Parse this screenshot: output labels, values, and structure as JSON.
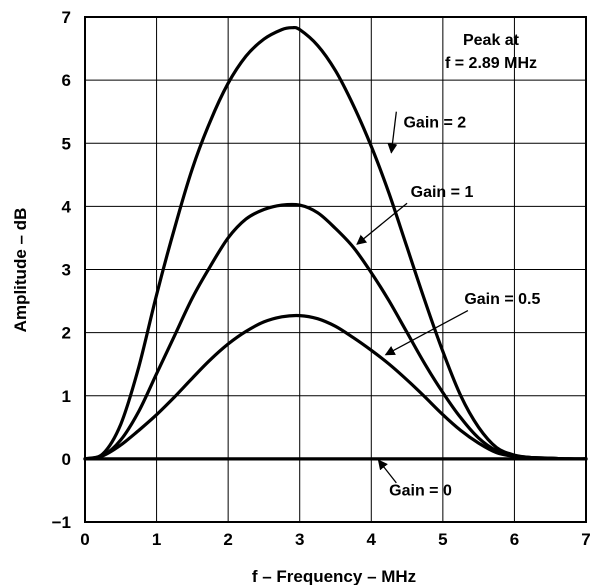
{
  "chart_data": {
    "type": "line",
    "xlabel": "f – Frequency – MHz",
    "ylabel": "Amplitude – dB",
    "xlim": [
      0,
      7
    ],
    "ylim": [
      -1,
      7
    ],
    "x_ticks": [
      "0",
      "1",
      "2",
      "3",
      "4",
      "5",
      "6",
      "7"
    ],
    "y_ticks": [
      "−1",
      "0",
      "1",
      "2",
      "3",
      "4",
      "5",
      "6",
      "7"
    ],
    "grid": true,
    "annotation": {
      "line1": "Peak at",
      "line2": "f = 2.89 MHz"
    },
    "series": [
      {
        "name": "Gain = 2",
        "x": [
          0,
          0.25,
          0.5,
          0.75,
          1,
          1.25,
          1.5,
          1.75,
          2,
          2.25,
          2.5,
          2.75,
          2.89,
          3,
          3.25,
          3.5,
          3.75,
          4,
          4.25,
          4.5,
          4.75,
          5,
          5.25,
          5.5,
          5.75,
          6,
          6.25,
          6.5,
          6.75,
          7
        ],
        "y": [
          0,
          0.08,
          0.55,
          1.45,
          2.6,
          3.65,
          4.6,
          5.35,
          5.95,
          6.38,
          6.65,
          6.8,
          6.83,
          6.8,
          6.55,
          6.15,
          5.6,
          4.95,
          4.2,
          3.35,
          2.5,
          1.7,
          1.0,
          0.5,
          0.18,
          0.06,
          0.02,
          0.01,
          0.0,
          0.0
        ],
        "label": "Gain = 2"
      },
      {
        "name": "Gain = 1",
        "x": [
          0,
          0.25,
          0.5,
          0.75,
          1,
          1.25,
          1.5,
          1.75,
          2,
          2.25,
          2.5,
          2.75,
          3,
          3.25,
          3.5,
          3.75,
          4,
          4.25,
          4.5,
          4.75,
          5,
          5.25,
          5.5,
          5.75,
          6,
          6.25,
          6.5,
          6.75,
          7
        ],
        "y": [
          0,
          0.05,
          0.3,
          0.75,
          1.35,
          1.95,
          2.55,
          3.05,
          3.5,
          3.8,
          3.95,
          4.02,
          4.02,
          3.9,
          3.65,
          3.35,
          2.95,
          2.5,
          2.0,
          1.5,
          1.05,
          0.65,
          0.33,
          0.13,
          0.05,
          0.02,
          0.01,
          0.0,
          0.0
        ],
        "label": "Gain = 1"
      },
      {
        "name": "Gain = 0.5",
        "x": [
          0,
          0.25,
          0.5,
          0.75,
          1,
          1.25,
          1.5,
          1.75,
          2,
          2.25,
          2.5,
          2.75,
          3,
          3.25,
          3.5,
          3.75,
          4,
          4.25,
          4.5,
          4.75,
          5,
          5.25,
          5.5,
          5.75,
          6,
          6.25,
          6.5,
          6.75,
          7
        ],
        "y": [
          0,
          0.05,
          0.22,
          0.45,
          0.7,
          0.98,
          1.28,
          1.57,
          1.82,
          2.02,
          2.17,
          2.25,
          2.27,
          2.22,
          2.1,
          1.92,
          1.72,
          1.5,
          1.25,
          0.98,
          0.7,
          0.45,
          0.25,
          0.1,
          0.04,
          0.02,
          0.01,
          0.0,
          0.0
        ],
        "label": "Gain = 0.5"
      },
      {
        "name": "Gain = 0",
        "x": [
          0,
          7
        ],
        "y": [
          0,
          0
        ],
        "label": "Gain = 0"
      }
    ],
    "labels": {
      "Gain = 2": {
        "text": "Gain = 2",
        "tx": 4.45,
        "ty": 5.25,
        "ax": 4.35,
        "ay": 5.5,
        "tipx": 4.28,
        "tipy": 4.85
      },
      "Gain = 1": {
        "text": "Gain = 1",
        "tx": 4.55,
        "ty": 4.15,
        "ax": 4.5,
        "ay": 4.05,
        "tipx": 3.8,
        "tipy": 3.4
      },
      "Gain = 0.5": {
        "text": "Gain = 0.5",
        "tx": 5.3,
        "ty": 2.45,
        "ax": 5.35,
        "ay": 2.35,
        "tipx": 4.2,
        "tipy": 1.65
      },
      "Gain = 0": {
        "text": "Gain = 0",
        "tx": 4.25,
        "ty": -0.58,
        "ax": 4.35,
        "ay": -0.38,
        "tipx": 4.1,
        "tipy": -0.02
      }
    }
  }
}
